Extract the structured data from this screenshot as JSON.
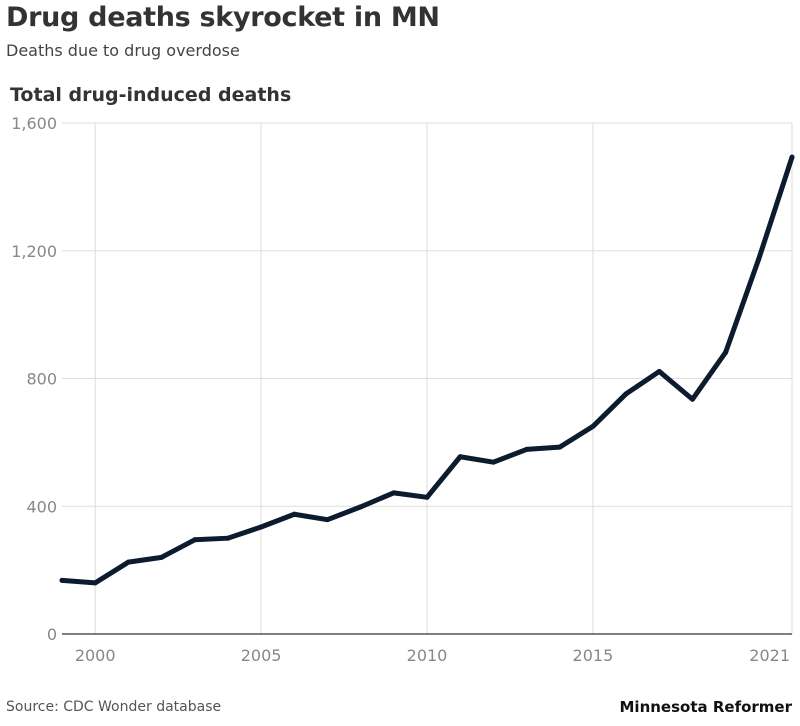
{
  "header": {
    "title": "Drug deaths skyrocket in MN",
    "subtitle": "Deaths due to drug overdose"
  },
  "footer": {
    "source": "Source: CDC Wonder database",
    "brand": "Minnesota Reformer"
  },
  "colors": {
    "line": "#0d1b2e",
    "grid": "#dddddd",
    "axis": "#333333",
    "tick_text": "#888888"
  },
  "chart_data": {
    "type": "line",
    "title": "Total drug-induced deaths",
    "xlabel": "",
    "ylabel": "",
    "grid": true,
    "xlim": [
      1999,
      2021
    ],
    "ylim": [
      0,
      1600
    ],
    "x_ticks": [
      2000,
      2005,
      2010,
      2015,
      2021
    ],
    "x_tick_labels": [
      "2000",
      "2005",
      "2010",
      "2015",
      "2021"
    ],
    "y_ticks": [
      0,
      400,
      800,
      1200,
      1600
    ],
    "y_tick_labels": [
      "0",
      "400",
      "800",
      "1,200",
      "1,600"
    ],
    "series": [
      {
        "name": "Total drug-induced deaths",
        "x": [
          1999,
          2000,
          2001,
          2002,
          2003,
          2004,
          2005,
          2006,
          2007,
          2008,
          2009,
          2010,
          2011,
          2012,
          2013,
          2014,
          2015,
          2016,
          2017,
          2018,
          2019,
          2020,
          2021
        ],
        "values": [
          168,
          160,
          225,
          240,
          295,
          300,
          335,
          375,
          358,
          398,
          442,
          428,
          555,
          538,
          578,
          585,
          650,
          752,
          822,
          735,
          882,
          1175,
          1493
        ]
      }
    ]
  }
}
